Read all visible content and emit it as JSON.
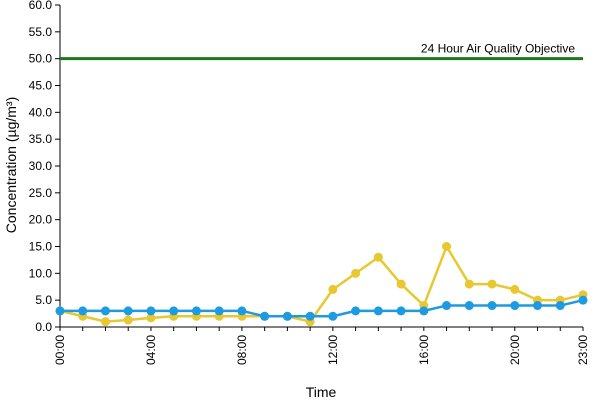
{
  "chart_data": {
    "type": "line",
    "title": "",
    "xlabel": "Time",
    "ylabel": "Concentration (µg/m³)",
    "ylim": [
      0,
      60
    ],
    "yticks": [
      "0.0",
      "5.0",
      "10.0",
      "15.0",
      "20.0",
      "25.0",
      "30.0",
      "35.0",
      "40.0",
      "45.0",
      "50.0",
      "55.0",
      "60.0"
    ],
    "x": [
      "00:00",
      "01:00",
      "02:00",
      "03:00",
      "04:00",
      "05:00",
      "06:00",
      "07:00",
      "08:00",
      "09:00",
      "10:00",
      "11:00",
      "12:00",
      "13:00",
      "14:00",
      "15:00",
      "16:00",
      "17:00",
      "18:00",
      "19:00",
      "20:00",
      "21:00",
      "22:00",
      "23:00"
    ],
    "xtick_labels": [
      "00:00",
      "04:00",
      "08:00",
      "12:00",
      "16:00",
      "20:00",
      "23:00"
    ],
    "grid": false,
    "legend": "none",
    "objective": {
      "label": "24 Hour Air Quality Objective",
      "value": 50,
      "color": "#1a7a1a"
    },
    "series": [
      {
        "color": "#e8c830",
        "values": [
          3,
          2,
          1,
          1.3,
          1.7,
          2,
          2,
          2,
          2,
          2,
          2,
          1,
          7,
          10,
          13,
          8,
          4,
          15,
          8,
          8,
          7,
          5,
          5,
          6
        ]
      },
      {
        "color": "#1e9be0",
        "values": [
          3,
          3,
          3,
          3,
          3,
          3,
          3,
          3,
          3,
          2,
          2,
          2,
          2,
          3,
          3,
          3,
          3,
          4,
          4,
          4,
          4,
          4,
          4,
          5
        ]
      }
    ]
  }
}
